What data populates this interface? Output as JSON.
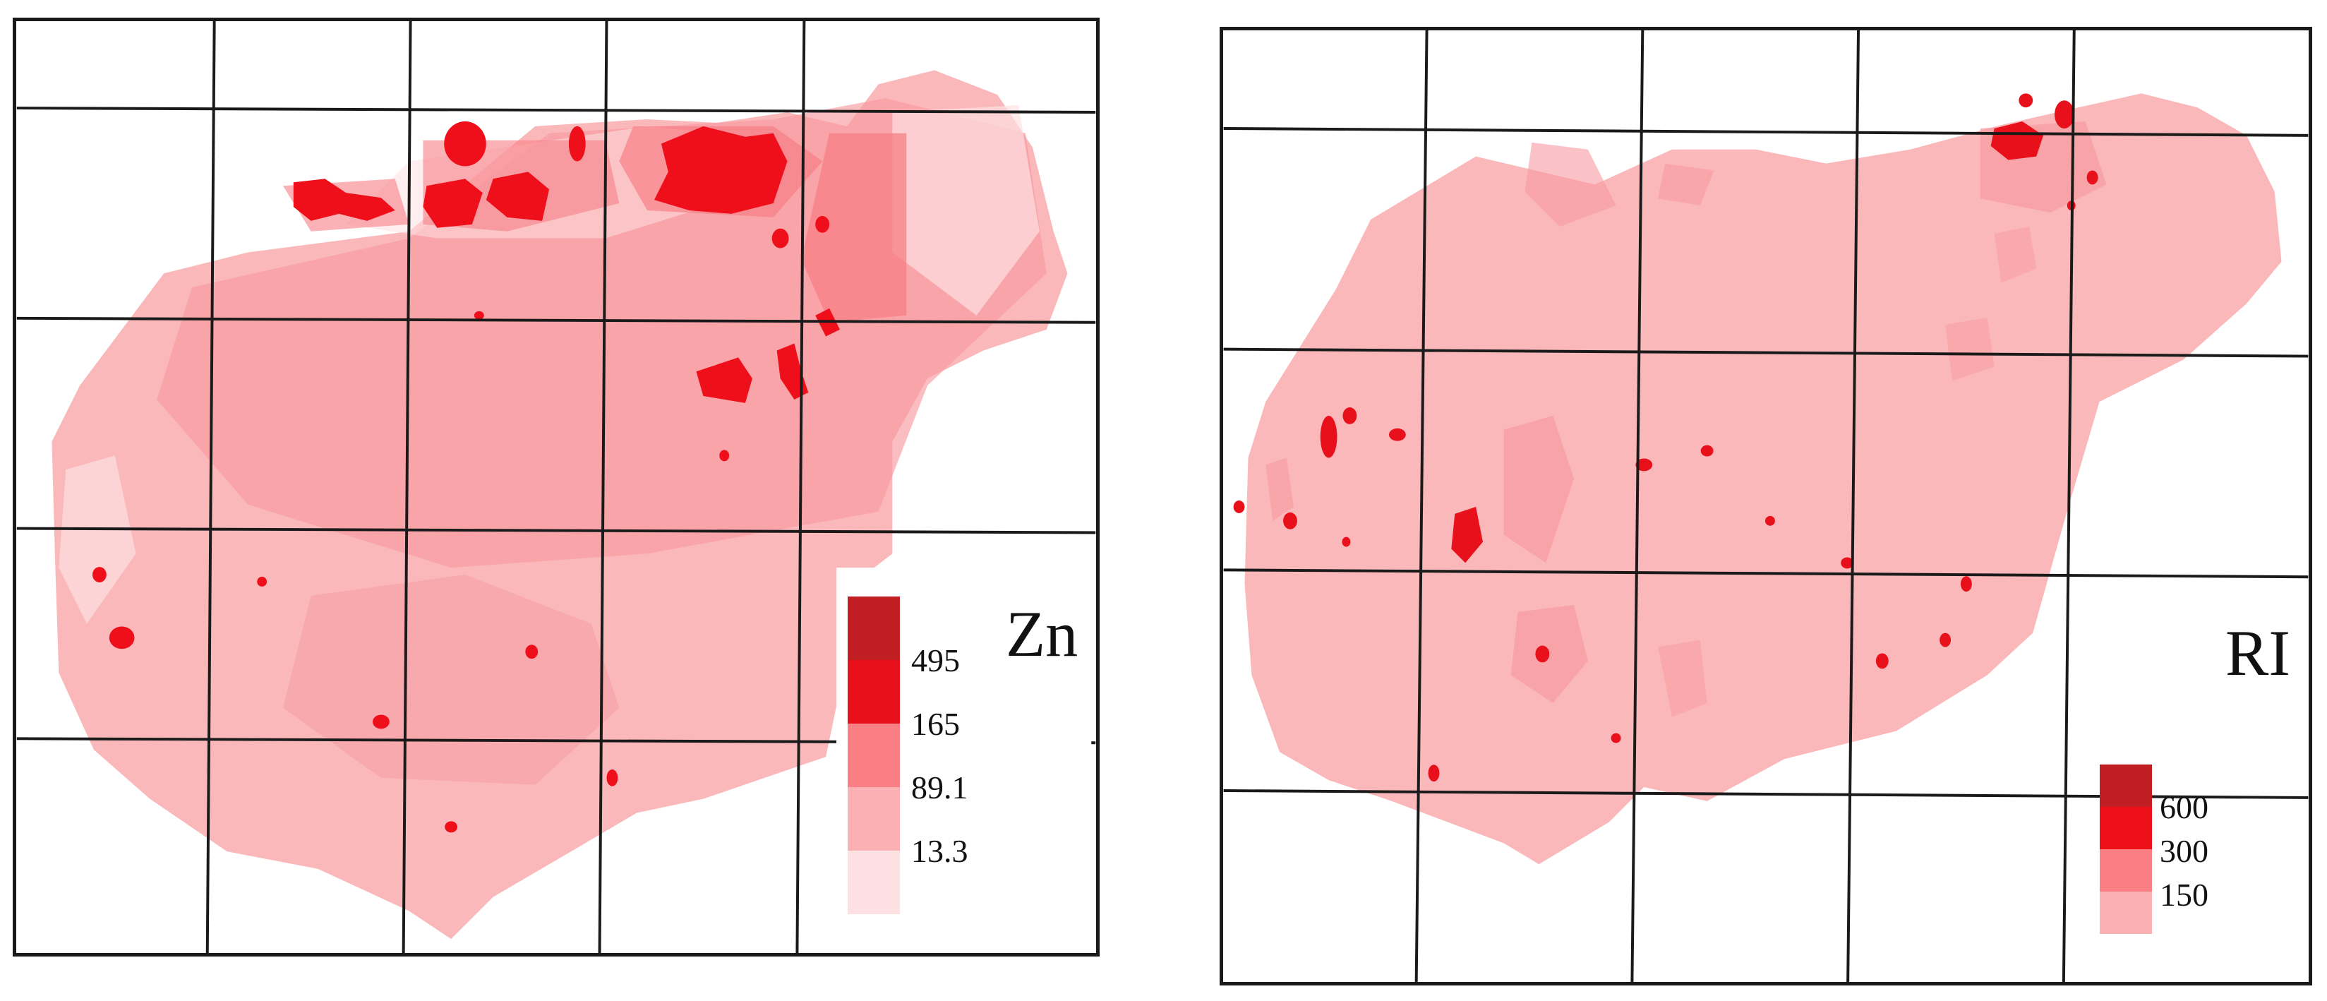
{
  "maps": [
    {
      "id": "zn",
      "title": "Zn",
      "legend": {
        "colors": [
          "#c01e22",
          "#e8101a",
          "#fa7f85",
          "#fbb0b3",
          "#fde0e2"
        ],
        "labels": [
          "495",
          "165",
          "89.1",
          "13.3"
        ]
      }
    },
    {
      "id": "ri",
      "title": "RI",
      "legend": {
        "colors": [
          "#c01e22",
          "#ee1018",
          "#fa7f85",
          "#fbb0b3"
        ],
        "labels": [
          "600",
          "300",
          "150"
        ]
      }
    }
  ]
}
